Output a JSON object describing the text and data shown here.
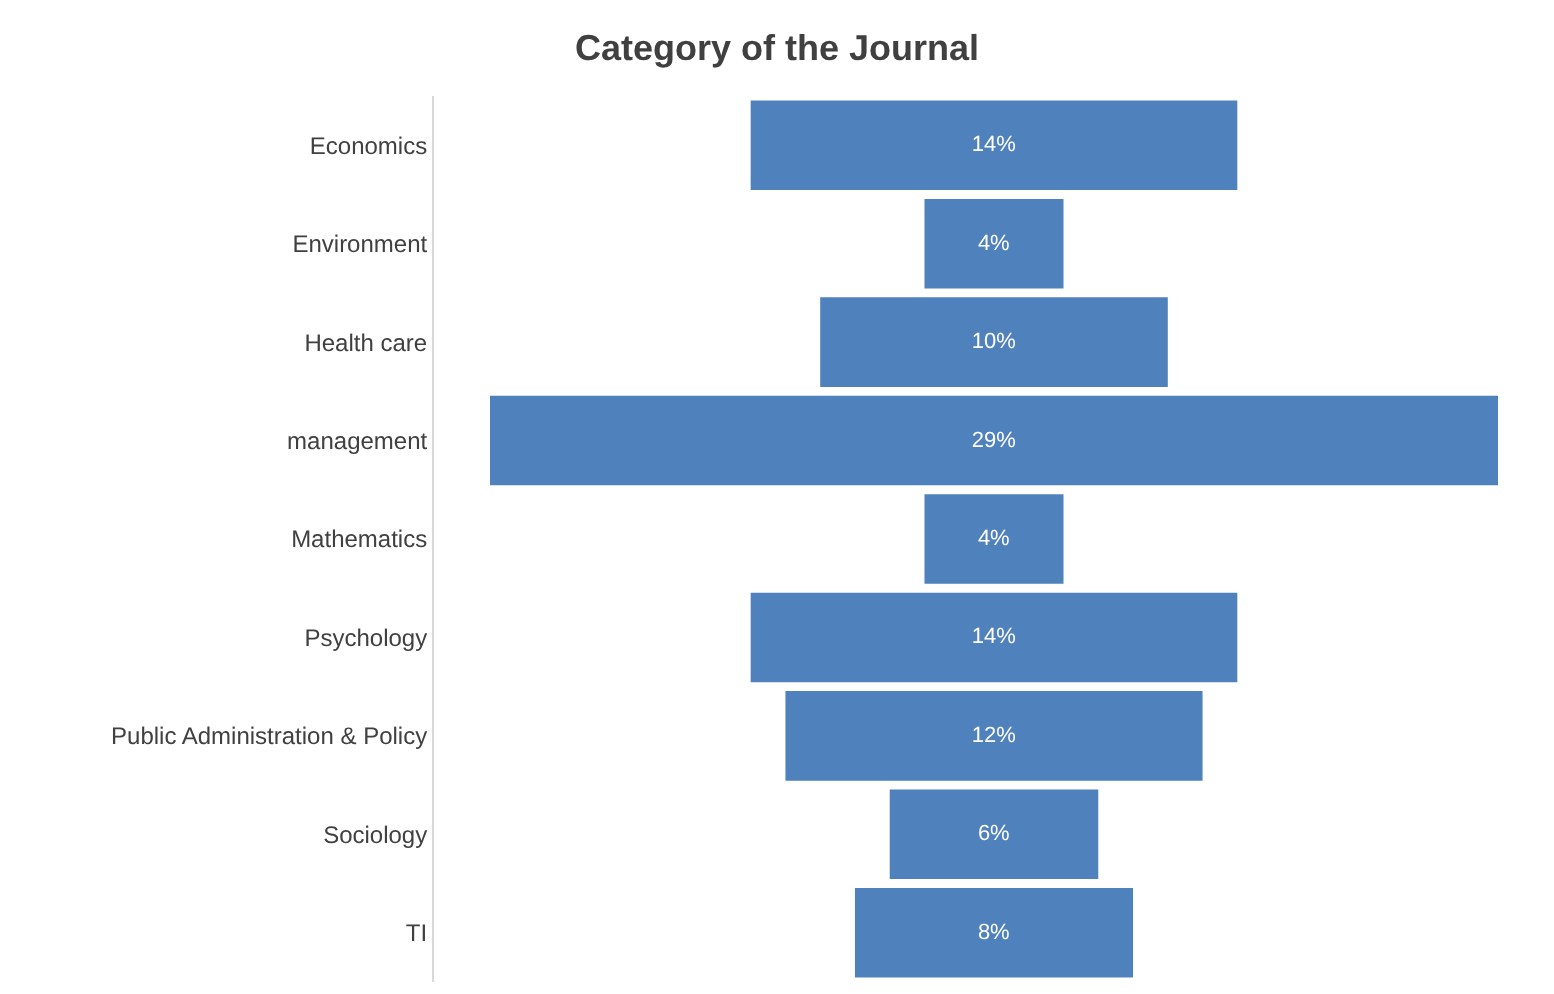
{
  "chart_data": {
    "type": "other",
    "title": "Category of the Journal",
    "categories": [
      "Economics",
      "Environment",
      "Health care",
      "management",
      "Mathematics",
      "Psychology",
      "Public Administration & Policy",
      "Sociology",
      "TI"
    ],
    "values": [
      14,
      4,
      10,
      29,
      4,
      14,
      12,
      6,
      8
    ],
    "value_labels": [
      "14%",
      "4%",
      "10%",
      "29%",
      "4%",
      "14%",
      "12%",
      "6%",
      "8%"
    ],
    "color": "#4f81bd"
  }
}
